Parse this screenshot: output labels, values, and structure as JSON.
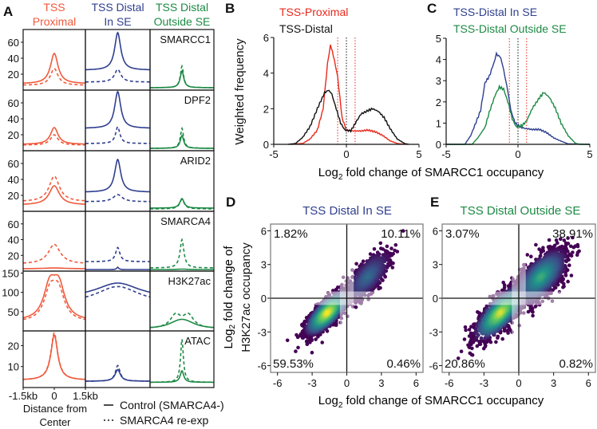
{
  "colors": {
    "proximal": "#f05a3c",
    "in_se": "#2f3f8f",
    "outside_se": "#1d8a45",
    "proximal_b": "#e8291c",
    "distal": "#111111",
    "viridis": [
      "#440154",
      "#3b528b",
      "#21918c",
      "#5ec962",
      "#fde725"
    ]
  },
  "panels": {
    "a": "A",
    "b": "B",
    "c": "C",
    "d": "D",
    "e": "E"
  },
  "chart_data": [
    {
      "panel": "A",
      "type": "line",
      "columns": [
        {
          "line1": "TSS",
          "line2": "Proximal",
          "color_key": "proximal"
        },
        {
          "line1": "TSS Distal",
          "line2": "In SE",
          "color_key": "in_se"
        },
        {
          "line1": "TSS Distal",
          "line2": "Outside SE",
          "color_key": "outside_se"
        }
      ],
      "xlim": [
        -1.5,
        1.5
      ],
      "x_ticks": [
        "-1.5kb",
        "0",
        "1.5kb"
      ],
      "xlabel_line1": "Distance from",
      "xlabel_line2": "Center",
      "legend": {
        "control": "Control (SMARCA4-)",
        "reexp": "SMARCA4 re-exp"
      },
      "profile_format": [
        "baseline",
        "peak",
        "half_width_kb",
        "split_kb"
      ],
      "rows": [
        {
          "label": "SMARCC1",
          "ylim": [
            0,
            76
          ],
          "ticks": [
            "20",
            "40",
            "60"
          ],
          "cells": [
            {
              "control": [
                8,
                46,
                0.22,
                0
              ],
              "reexp": [
                6,
                27,
                0.22,
                0
              ]
            },
            {
              "control": [
                25,
                72,
                0.17,
                0
              ],
              "reexp": [
                10,
                26,
                0.18,
                0
              ]
            },
            {
              "control": [
                3,
                24,
                0.1,
                0
              ],
              "reexp": [
                3,
                30,
                0.09,
                0
              ]
            }
          ]
        },
        {
          "label": "DPF2",
          "ylim": [
            0,
            76
          ],
          "ticks": [
            "20",
            "40",
            "60"
          ],
          "cells": [
            {
              "control": [
                8,
                29,
                0.22,
                0
              ],
              "reexp": [
                7,
                20,
                0.22,
                0
              ]
            },
            {
              "control": [
                28,
                74,
                0.17,
                0
              ],
              "reexp": [
                9,
                30,
                0.12,
                0
              ]
            },
            {
              "control": [
                3,
                19,
                0.1,
                0
              ],
              "reexp": [
                3,
                28,
                0.09,
                0
              ]
            }
          ]
        },
        {
          "label": "ARID2",
          "ylim": [
            0,
            76
          ],
          "ticks": [
            "20",
            "40",
            "60"
          ],
          "cells": [
            {
              "control": [
                8,
                32,
                0.3,
                0
              ],
              "reexp": [
                12,
                44,
                0.3,
                0
              ]
            },
            {
              "control": [
                24,
                65,
                0.17,
                0
              ],
              "reexp": [
                12,
                21,
                0.25,
                0
              ]
            },
            {
              "control": [
                4,
                16,
                0.12,
                0
              ],
              "reexp": [
                3,
                15,
                0.13,
                0
              ]
            }
          ]
        },
        {
          "label": "SMARCA4",
          "ylim": [
            0,
            76
          ],
          "ticks": [
            "20",
            "40",
            "60"
          ],
          "cells": [
            {
              "control": [
                3,
                4,
                0.6,
                0
              ],
              "reexp": [
                9,
                34,
                0.35,
                0
              ]
            },
            {
              "control": [
                2,
                5,
                0.05,
                0
              ],
              "reexp": [
                12,
                30,
                0.12,
                0
              ]
            },
            {
              "control": [
                2,
                2.5,
                0.3,
                0
              ],
              "reexp": [
                4,
                40,
                0.11,
                0
              ]
            }
          ]
        },
        {
          "label": "H3K27ac",
          "ylim": [
            0,
            155
          ],
          "ticks": [
            "50",
            "100",
            "150"
          ],
          "cells": [
            {
              "control": [
                25,
                145,
                0.35,
                0.22
              ],
              "reexp": [
                22,
                131,
                0.35,
                0.2
              ]
            },
            {
              "control": [
                85,
                124,
                1.2,
                0.1
              ],
              "reexp": [
                70,
                115,
                1.2,
                0.12
              ]
            },
            {
              "control": [
                5,
                30,
                0.6,
                0.15
              ],
              "reexp": [
                6,
                46,
                0.3,
                0.3
              ]
            }
          ]
        },
        {
          "label": "ATAC",
          "ylim": [
            0,
            27
          ],
          "ticks": [
            "10",
            "20"
          ],
          "cells": [
            {
              "control": [
                3.5,
                25,
                0.2,
                0
              ],
              "reexp": [
                3.5,
                26,
                0.2,
                0
              ]
            },
            {
              "control": [
                3,
                8.5,
                0.15,
                0
              ],
              "reexp": [
                3,
                10.5,
                0.13,
                0
              ]
            },
            {
              "control": [
                2.5,
                8,
                0.1,
                0
              ],
              "reexp": [
                2.5,
                23,
                0.08,
                0
              ]
            }
          ]
        }
      ]
    },
    {
      "panel": "B",
      "type": "line",
      "xlim": [
        -5,
        5
      ],
      "ylim": [
        0,
        6
      ],
      "x_ticks": [
        "-5",
        "0",
        "5"
      ],
      "y_ticks": [
        "0",
        "2",
        "4",
        "6"
      ],
      "ylabel": "Weighted frequency",
      "threshold_lines": [
        -0.6,
        0,
        0.6
      ],
      "series": [
        {
          "name": "TSS-Proximal",
          "color_key": "proximal_b",
          "points": [
            [
              -3.8,
              0
            ],
            [
              -3,
              0.05
            ],
            [
              -2.5,
              0.3
            ],
            [
              -2,
              0.8
            ],
            [
              -1.6,
              2
            ],
            [
              -1.3,
              4.5
            ],
            [
              -1.1,
              5.6
            ],
            [
              -0.9,
              5
            ],
            [
              -0.6,
              3.8
            ],
            [
              -0.3,
              1.5
            ],
            [
              0,
              0.8
            ],
            [
              0.5,
              0.75
            ],
            [
              1,
              0.75
            ],
            [
              1.5,
              0.8
            ],
            [
              2,
              0.7
            ],
            [
              2.5,
              0.5
            ],
            [
              3,
              0.2
            ],
            [
              3.5,
              0.05
            ],
            [
              4,
              0
            ]
          ]
        },
        {
          "name": "TSS-Distal",
          "color_key": "distal",
          "points": [
            [
              -4,
              0
            ],
            [
              -3.5,
              0.05
            ],
            [
              -3,
              0.4
            ],
            [
              -2.5,
              1
            ],
            [
              -2,
              2
            ],
            [
              -1.5,
              2.9
            ],
            [
              -1.2,
              3.05
            ],
            [
              -1,
              2.8
            ],
            [
              -0.7,
              2
            ],
            [
              -0.4,
              1.2
            ],
            [
              -0.1,
              0.8
            ],
            [
              0.3,
              0.75
            ],
            [
              0.7,
              1.3
            ],
            [
              1,
              1.7
            ],
            [
              1.5,
              1.9
            ],
            [
              1.8,
              2
            ],
            [
              2.2,
              1.85
            ],
            [
              2.6,
              1.5
            ],
            [
              3,
              0.9
            ],
            [
              3.5,
              0.3
            ],
            [
              4,
              0.05
            ],
            [
              4.3,
              0
            ]
          ]
        }
      ]
    },
    {
      "panel": "C",
      "type": "line",
      "xlim": [
        -5,
        5
      ],
      "ylim": [
        0,
        5
      ],
      "x_ticks": [
        "-5",
        "0",
        "5"
      ],
      "y_ticks": [
        "0",
        "1",
        "2",
        "3",
        "4",
        "5"
      ],
      "threshold_lines": [
        -0.6,
        0,
        0.6
      ],
      "series": [
        {
          "name": "TSS-Distal In SE",
          "color_key": "in_se",
          "points": [
            [
              -5,
              0
            ],
            [
              -3.7,
              0
            ],
            [
              -3.3,
              0.4
            ],
            [
              -3,
              0.9
            ],
            [
              -2.6,
              1.6
            ],
            [
              -2.3,
              2.9
            ],
            [
              -2,
              3.2
            ],
            [
              -1.7,
              3.8
            ],
            [
              -1.5,
              4.25
            ],
            [
              -1.2,
              4.1
            ],
            [
              -1,
              3.5
            ],
            [
              -0.7,
              2.5
            ],
            [
              -0.5,
              1.6
            ],
            [
              -0.2,
              1
            ],
            [
              0.2,
              0.8
            ],
            [
              0.5,
              0.75
            ],
            [
              1,
              0.7
            ],
            [
              1.5,
              0.7
            ],
            [
              2,
              0.55
            ],
            [
              2.5,
              0.3
            ],
            [
              3,
              0.15
            ],
            [
              3.5,
              0.02
            ],
            [
              5,
              0
            ]
          ]
        },
        {
          "name": "TSS-Distal Outside SE",
          "color_key": "outside_se",
          "points": [
            [
              -5,
              0
            ],
            [
              -3.2,
              0
            ],
            [
              -2.8,
              0.3
            ],
            [
              -2.3,
              0.8
            ],
            [
              -2,
              1.5
            ],
            [
              -1.6,
              2.3
            ],
            [
              -1.3,
              2.7
            ],
            [
              -1,
              2.6
            ],
            [
              -0.7,
              2
            ],
            [
              -0.4,
              1.2
            ],
            [
              -0.1,
              0.8
            ],
            [
              0.3,
              0.9
            ],
            [
              0.6,
              1.1
            ],
            [
              1,
              1.7
            ],
            [
              1.5,
              2.2
            ],
            [
              1.8,
              2.45
            ],
            [
              2.2,
              2.2
            ],
            [
              2.6,
              1.7
            ],
            [
              3,
              1
            ],
            [
              3.5,
              0.4
            ],
            [
              4,
              0.05
            ],
            [
              4.3,
              0
            ],
            [
              5,
              0
            ]
          ]
        }
      ]
    },
    {
      "panel": "D",
      "type": "scatter",
      "title": "TSS Distal In SE",
      "title_color_key": "in_se",
      "xlim": [
        -6.6,
        6.6
      ],
      "ylim": [
        -6.6,
        6.6
      ],
      "ticks": [
        "-6",
        "-3",
        "0",
        "3",
        "6"
      ],
      "quadrants": {
        "top_left": "1.82%",
        "top_right": "10.11%",
        "bottom_left": "59.53%",
        "bottom_right": "0.46%"
      },
      "density_clusters": [
        {
          "cx": -1.7,
          "cy": -1.3,
          "sx": 0.85,
          "sy": 0.9,
          "rho": 0.75,
          "n": 1800,
          "max_density": 1.0
        },
        {
          "cx": 1.8,
          "cy": 1.9,
          "sx": 0.85,
          "sy": 1.0,
          "rho": 0.7,
          "n": 900,
          "max_density": 0.35
        }
      ]
    },
    {
      "panel": "E",
      "type": "scatter",
      "title": "TSS Distal Outside SE",
      "title_color_key": "outside_se",
      "xlim": [
        -6.6,
        6.6
      ],
      "ylim": [
        -6.6,
        6.6
      ],
      "ticks": [
        "-6",
        "-3",
        "0",
        "3",
        "6"
      ],
      "quadrants": {
        "top_left": "3.07%",
        "top_right": "38.91%",
        "bottom_left": "20.86%",
        "bottom_right": "0.82%"
      },
      "density_clusters": [
        {
          "cx": -1.6,
          "cy": -1.3,
          "sx": 1.0,
          "sy": 1.1,
          "rho": 0.75,
          "n": 1500,
          "max_density": 0.95
        },
        {
          "cx": 1.9,
          "cy": 1.9,
          "sx": 1.0,
          "sy": 1.1,
          "rho": 0.65,
          "n": 2200,
          "max_density": 0.62
        }
      ]
    }
  ],
  "shared_labels": {
    "bc_xlabel_pre": "Log",
    "bc_xlabel_sub": "2",
    "bc_xlabel_post": " fold change of SMARCC1 occupancy",
    "de_xlabel_pre": "Log",
    "de_xlabel_sub": "2",
    "de_xlabel_post": " fold change of SMARCC1 occupancy",
    "de_ylabel_pre": "Log",
    "de_ylabel_sub": "2",
    "de_ylabel_post": " fold change of",
    "de_ylabel_line2": "H3K27ac occupancy"
  }
}
